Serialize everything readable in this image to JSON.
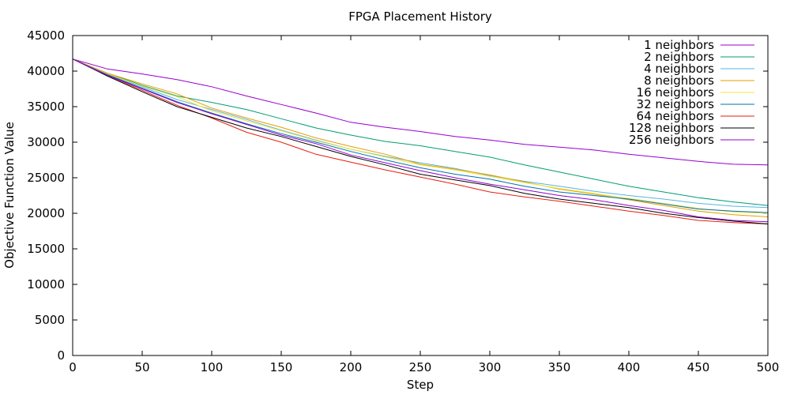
{
  "chart_data": {
    "type": "line",
    "title": "FPGA Placement History",
    "xlabel": "Step",
    "ylabel": "Objective Function Value",
    "xlim": [
      0,
      500
    ],
    "ylim": [
      0,
      45000
    ],
    "xticks": [
      "0",
      "50",
      "100",
      "150",
      "200",
      "250",
      "300",
      "350",
      "400",
      "450",
      "500"
    ],
    "yticks": [
      "0",
      "5000",
      "10000",
      "15000",
      "20000",
      "25000",
      "30000",
      "35000",
      "40000",
      "45000"
    ],
    "grid": false,
    "legend_position": "top-right",
    "x": [
      0,
      25,
      50,
      75,
      100,
      125,
      150,
      175,
      200,
      225,
      250,
      275,
      300,
      325,
      350,
      375,
      400,
      425,
      450,
      475,
      500
    ],
    "series": [
      {
        "name": "1 neighbors",
        "color": "#9400d3",
        "values": [
          41700,
          40300,
          39600,
          38800,
          37800,
          36500,
          35300,
          34100,
          32800,
          32100,
          31500,
          30800,
          30300,
          29700,
          29300,
          28900,
          28300,
          27800,
          27300,
          26900,
          26800
        ]
      },
      {
        "name": "2 neighbors",
        "color": "#009e73",
        "values": [
          41700,
          39700,
          38000,
          36500,
          35600,
          34600,
          33300,
          32000,
          31000,
          30100,
          29500,
          28700,
          27900,
          26800,
          25800,
          24800,
          23800,
          23000,
          22200,
          21600,
          21100
        ]
      },
      {
        "name": "4 neighbors",
        "color": "#56b4e9",
        "values": [
          41700,
          39600,
          37800,
          36000,
          34600,
          33200,
          31700,
          30300,
          29000,
          28000,
          27100,
          26300,
          25300,
          24500,
          23800,
          23100,
          22500,
          22000,
          21400,
          21000,
          20800
        ]
      },
      {
        "name": "8 neighbors",
        "color": "#e69f00",
        "values": [
          41700,
          39700,
          38200,
          36800,
          34800,
          33400,
          32100,
          30600,
          29400,
          28300,
          26900,
          26200,
          25400,
          24400,
          23400,
          22700,
          21900,
          21100,
          20300,
          19800,
          19500
        ]
      },
      {
        "name": "16 neighbors",
        "color": "#f0e442",
        "values": [
          41700,
          39600,
          37900,
          36400,
          34400,
          33000,
          31600,
          30200,
          29000,
          27900,
          26800,
          26100,
          25200,
          24300,
          23500,
          22800,
          22100,
          21400,
          20700,
          20200,
          20000
        ]
      },
      {
        "name": "32 neighbors",
        "color": "#0072b2",
        "values": [
          41700,
          39500,
          37600,
          35700,
          34100,
          32600,
          31200,
          30000,
          28700,
          27500,
          26400,
          25500,
          24800,
          23800,
          23000,
          22500,
          22000,
          21300,
          20600,
          20300,
          20100
        ]
      },
      {
        "name": "64 neighbors",
        "color": "#e51e10",
        "values": [
          41700,
          39400,
          37300,
          35200,
          33400,
          31400,
          30000,
          28300,
          27200,
          26100,
          25100,
          24100,
          23000,
          22300,
          21700,
          21000,
          20300,
          19700,
          19000,
          18700,
          18500
        ]
      },
      {
        "name": "128 neighbors",
        "color": "#000000",
        "values": [
          41700,
          39300,
          37100,
          35000,
          33500,
          32000,
          30800,
          29400,
          28000,
          26800,
          25500,
          24700,
          23900,
          22800,
          22000,
          21400,
          20800,
          20000,
          19400,
          18900,
          18500
        ]
      },
      {
        "name": "256 neighbors",
        "color": "#9400d3",
        "values": [
          41700,
          39400,
          37500,
          35600,
          34000,
          32500,
          31000,
          29800,
          28200,
          27100,
          26000,
          25000,
          24100,
          23300,
          22500,
          21900,
          21100,
          20400,
          19500,
          19000,
          18800
        ]
      }
    ]
  }
}
